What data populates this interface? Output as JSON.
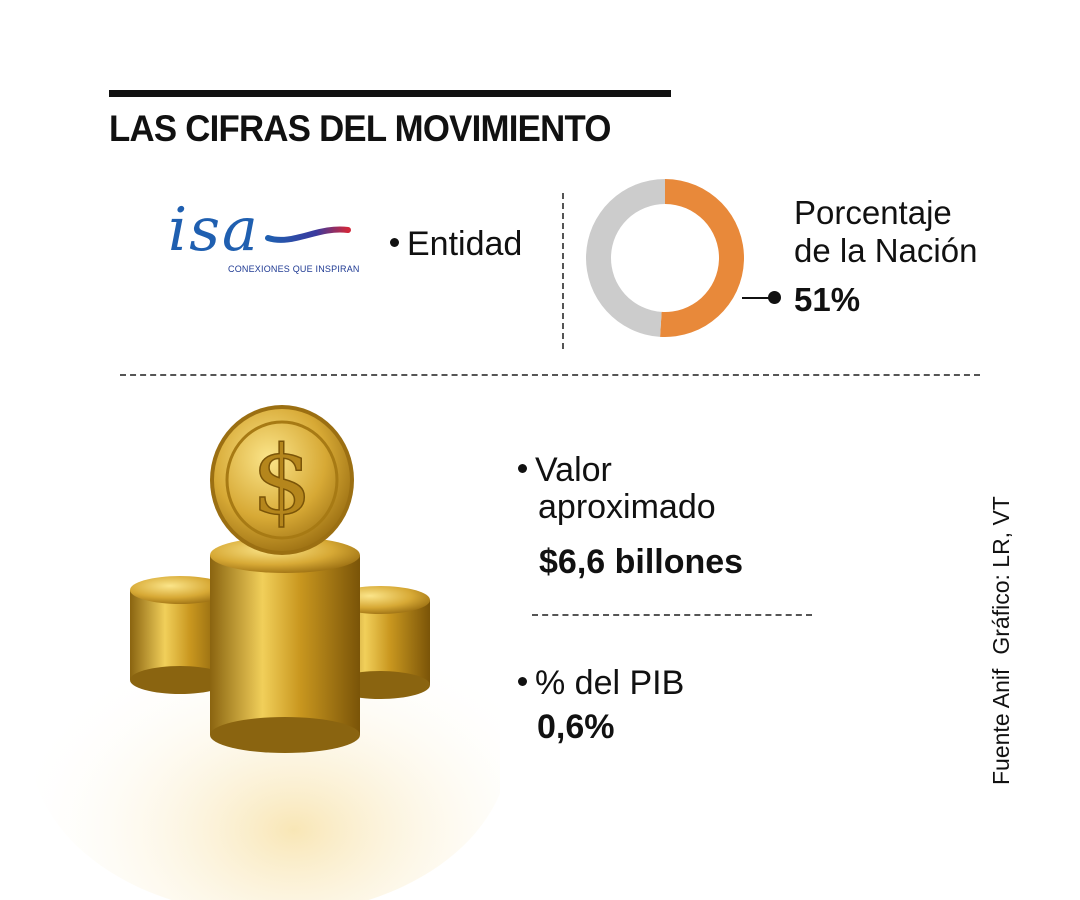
{
  "header": {
    "title": "LAS CIFRAS DEL MOVIMIENTO"
  },
  "logo": {
    "wordmark": "isa",
    "tagline": "CONEXIONES QUE INSPIRAN"
  },
  "entity": {
    "label": "Entidad"
  },
  "chart_data": {
    "type": "pie",
    "donut": true,
    "title": "",
    "slices": [
      {
        "label": "Porcentaje de la Nación",
        "value": 51,
        "color": "#E8893A"
      },
      {
        "label": "",
        "value": 49,
        "color": "#CCCCCC"
      }
    ],
    "annotation": {
      "label_line1": "Porcentaje",
      "label_line2": "de la Nación",
      "value_text": "51%"
    }
  },
  "stats": {
    "valor": {
      "label_line1": "Valor",
      "label_line2": "aproximado",
      "value": "$6,6 billones"
    },
    "pib": {
      "label": "% del PIB",
      "value": "0,6%"
    }
  },
  "credits": {
    "source": "Fuente Anif",
    "graphic": "Gráfico: LR, VT"
  },
  "colors": {
    "accent": "#E8893A",
    "remainder": "#CCCCCC",
    "logo_blue": "#1f5fb0",
    "logo_red": "#d0263a"
  },
  "icons": {
    "illustration": "gold-coins-stack-icon",
    "logo": "isa-logo"
  }
}
